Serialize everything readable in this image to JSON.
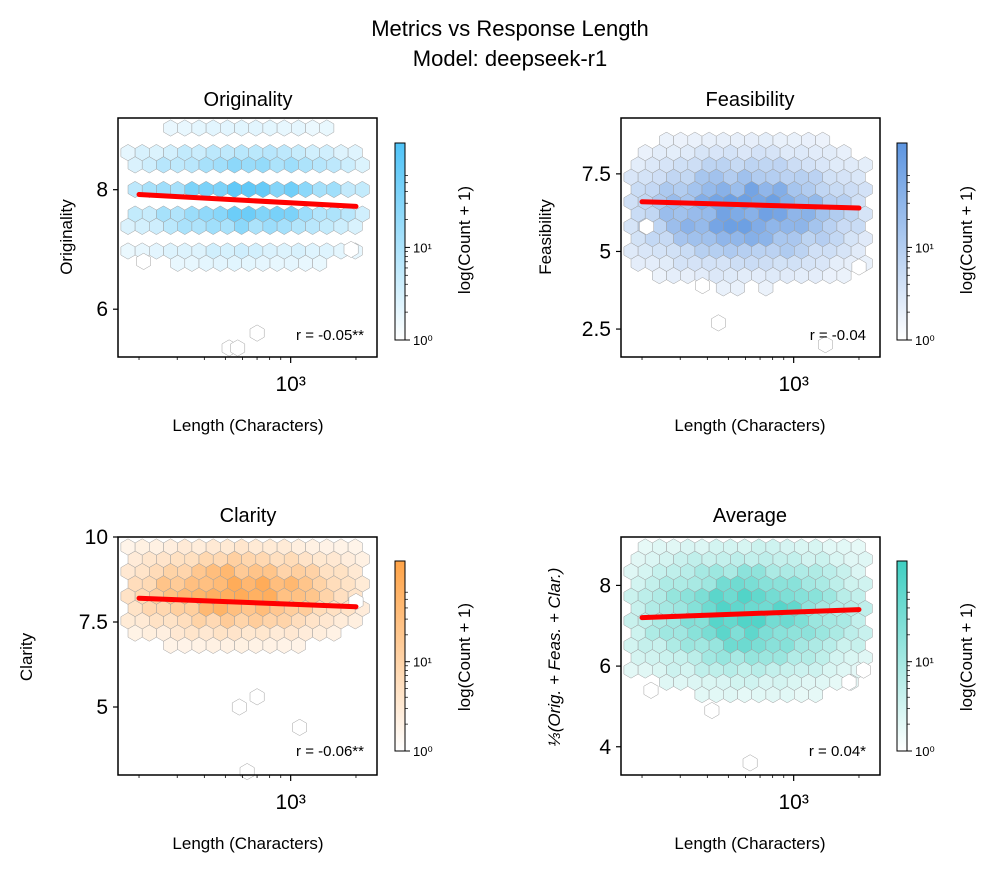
{
  "figure": {
    "title_line1": "Metrics vs Response Length",
    "title_line2": "Model: deepseek-r1"
  },
  "chart_data": [
    {
      "type": "hexbin",
      "title": "Originality",
      "xlabel": "Length (Characters)",
      "ylabel": "Originality",
      "x_scale": "log",
      "xlim": [
        160,
        2500
      ],
      "ylim": [
        5.2,
        9.2
      ],
      "x_ticks": [
        {
          "value": 1000,
          "label": "10³"
        }
      ],
      "y_ticks": [
        6,
        8
      ],
      "color": "#4fc3f7",
      "colorbar_label": "log(Count + 1)",
      "colorbar_ticks": [
        "10⁰",
        "10¹"
      ],
      "regression": {
        "x0": 200,
        "y0": 7.92,
        "x1": 2000,
        "y1": 7.72
      },
      "annotation": "r = -0.05**",
      "x_center": 620,
      "x_spread": 0.36,
      "y_center": 7.9,
      "y_spread": 0.55,
      "y_levels": [
        6.67,
        7.0,
        7.33,
        7.67,
        8.0,
        8.33,
        8.67,
        9.0
      ],
      "max_density": 0.95,
      "outliers": [
        [
          210,
          6.8
        ],
        [
          1900,
          7.0
        ],
        [
          700,
          5.6
        ],
        [
          520,
          5.35
        ],
        [
          570,
          5.35
        ]
      ]
    },
    {
      "type": "hexbin",
      "title": "Feasibility",
      "xlabel": "Length (Characters)",
      "ylabel": "Feasibility",
      "x_scale": "log",
      "xlim": [
        160,
        2500
      ],
      "ylim": [
        1.6,
        9.3
      ],
      "x_ticks": [
        {
          "value": 1000,
          "label": "10³"
        }
      ],
      "y_ticks": [
        2.5,
        5.0,
        7.5
      ],
      "color": "#5d95e0",
      "colorbar_label": "log(Count + 1)",
      "colorbar_ticks": [
        "10⁰",
        "10¹"
      ],
      "regression": {
        "x0": 200,
        "y0": 6.6,
        "x1": 2000,
        "y1": 6.4
      },
      "annotation": "r = -0.04",
      "x_center": 600,
      "x_spread": 0.34,
      "y_center": 6.3,
      "y_spread": 1.1,
      "y_levels": [],
      "max_density": 1.0,
      "outliers": [
        [
          1400,
          2.0
        ],
        [
          380,
          3.9
        ],
        [
          450,
          2.7
        ],
        [
          2000,
          4.5
        ],
        [
          210,
          5.8
        ]
      ]
    },
    {
      "type": "hexbin",
      "title": "Clarity",
      "xlabel": "Length (Characters)",
      "ylabel": "Clarity",
      "x_scale": "log",
      "xlim": [
        160,
        2500
      ],
      "ylim": [
        3.0,
        10.0
      ],
      "x_ticks": [
        {
          "value": 1000,
          "label": "10³"
        }
      ],
      "y_ticks": [
        5.0,
        7.5,
        10.0
      ],
      "color": "#ffa347",
      "colorbar_label": "log(Count + 1)",
      "colorbar_ticks": [
        "10⁰",
        "10¹"
      ],
      "regression": {
        "x0": 200,
        "y0": 8.2,
        "x1": 2000,
        "y1": 7.95
      },
      "annotation": "r = -0.06**",
      "x_center": 560,
      "x_spread": 0.34,
      "y_center": 8.4,
      "y_spread": 0.75,
      "y_levels": [],
      "max_density": 1.0,
      "outliers": [
        [
          630,
          3.1
        ],
        [
          1100,
          4.4
        ],
        [
          580,
          5.0
        ],
        [
          700,
          5.3
        ],
        [
          2000,
          8.1
        ]
      ]
    },
    {
      "type": "hexbin",
      "title": "Average",
      "xlabel": "Length (Characters)",
      "ylabel": "⅓(Orig. + Feas. + Clar.)",
      "x_scale": "log",
      "xlim": [
        160,
        2500
      ],
      "ylim": [
        3.3,
        9.2
      ],
      "x_ticks": [
        {
          "value": 1000,
          "label": "10³"
        }
      ],
      "y_ticks": [
        4,
        6,
        8
      ],
      "color": "#3fcfc2",
      "colorbar_label": "log(Count + 1)",
      "colorbar_ticks": [
        "10⁰",
        "10¹"
      ],
      "regression": {
        "x0": 200,
        "y0": 7.2,
        "x1": 2000,
        "y1": 7.4
      },
      "annotation": "r = 0.04*",
      "x_center": 620,
      "x_spread": 0.34,
      "y_center": 7.3,
      "y_spread": 0.95,
      "y_levels": [],
      "max_density": 1.0,
      "outliers": [
        [
          630,
          3.6
        ],
        [
          220,
          5.4
        ],
        [
          1800,
          5.6
        ],
        [
          2100,
          5.9
        ],
        [
          420,
          4.9
        ]
      ]
    }
  ]
}
